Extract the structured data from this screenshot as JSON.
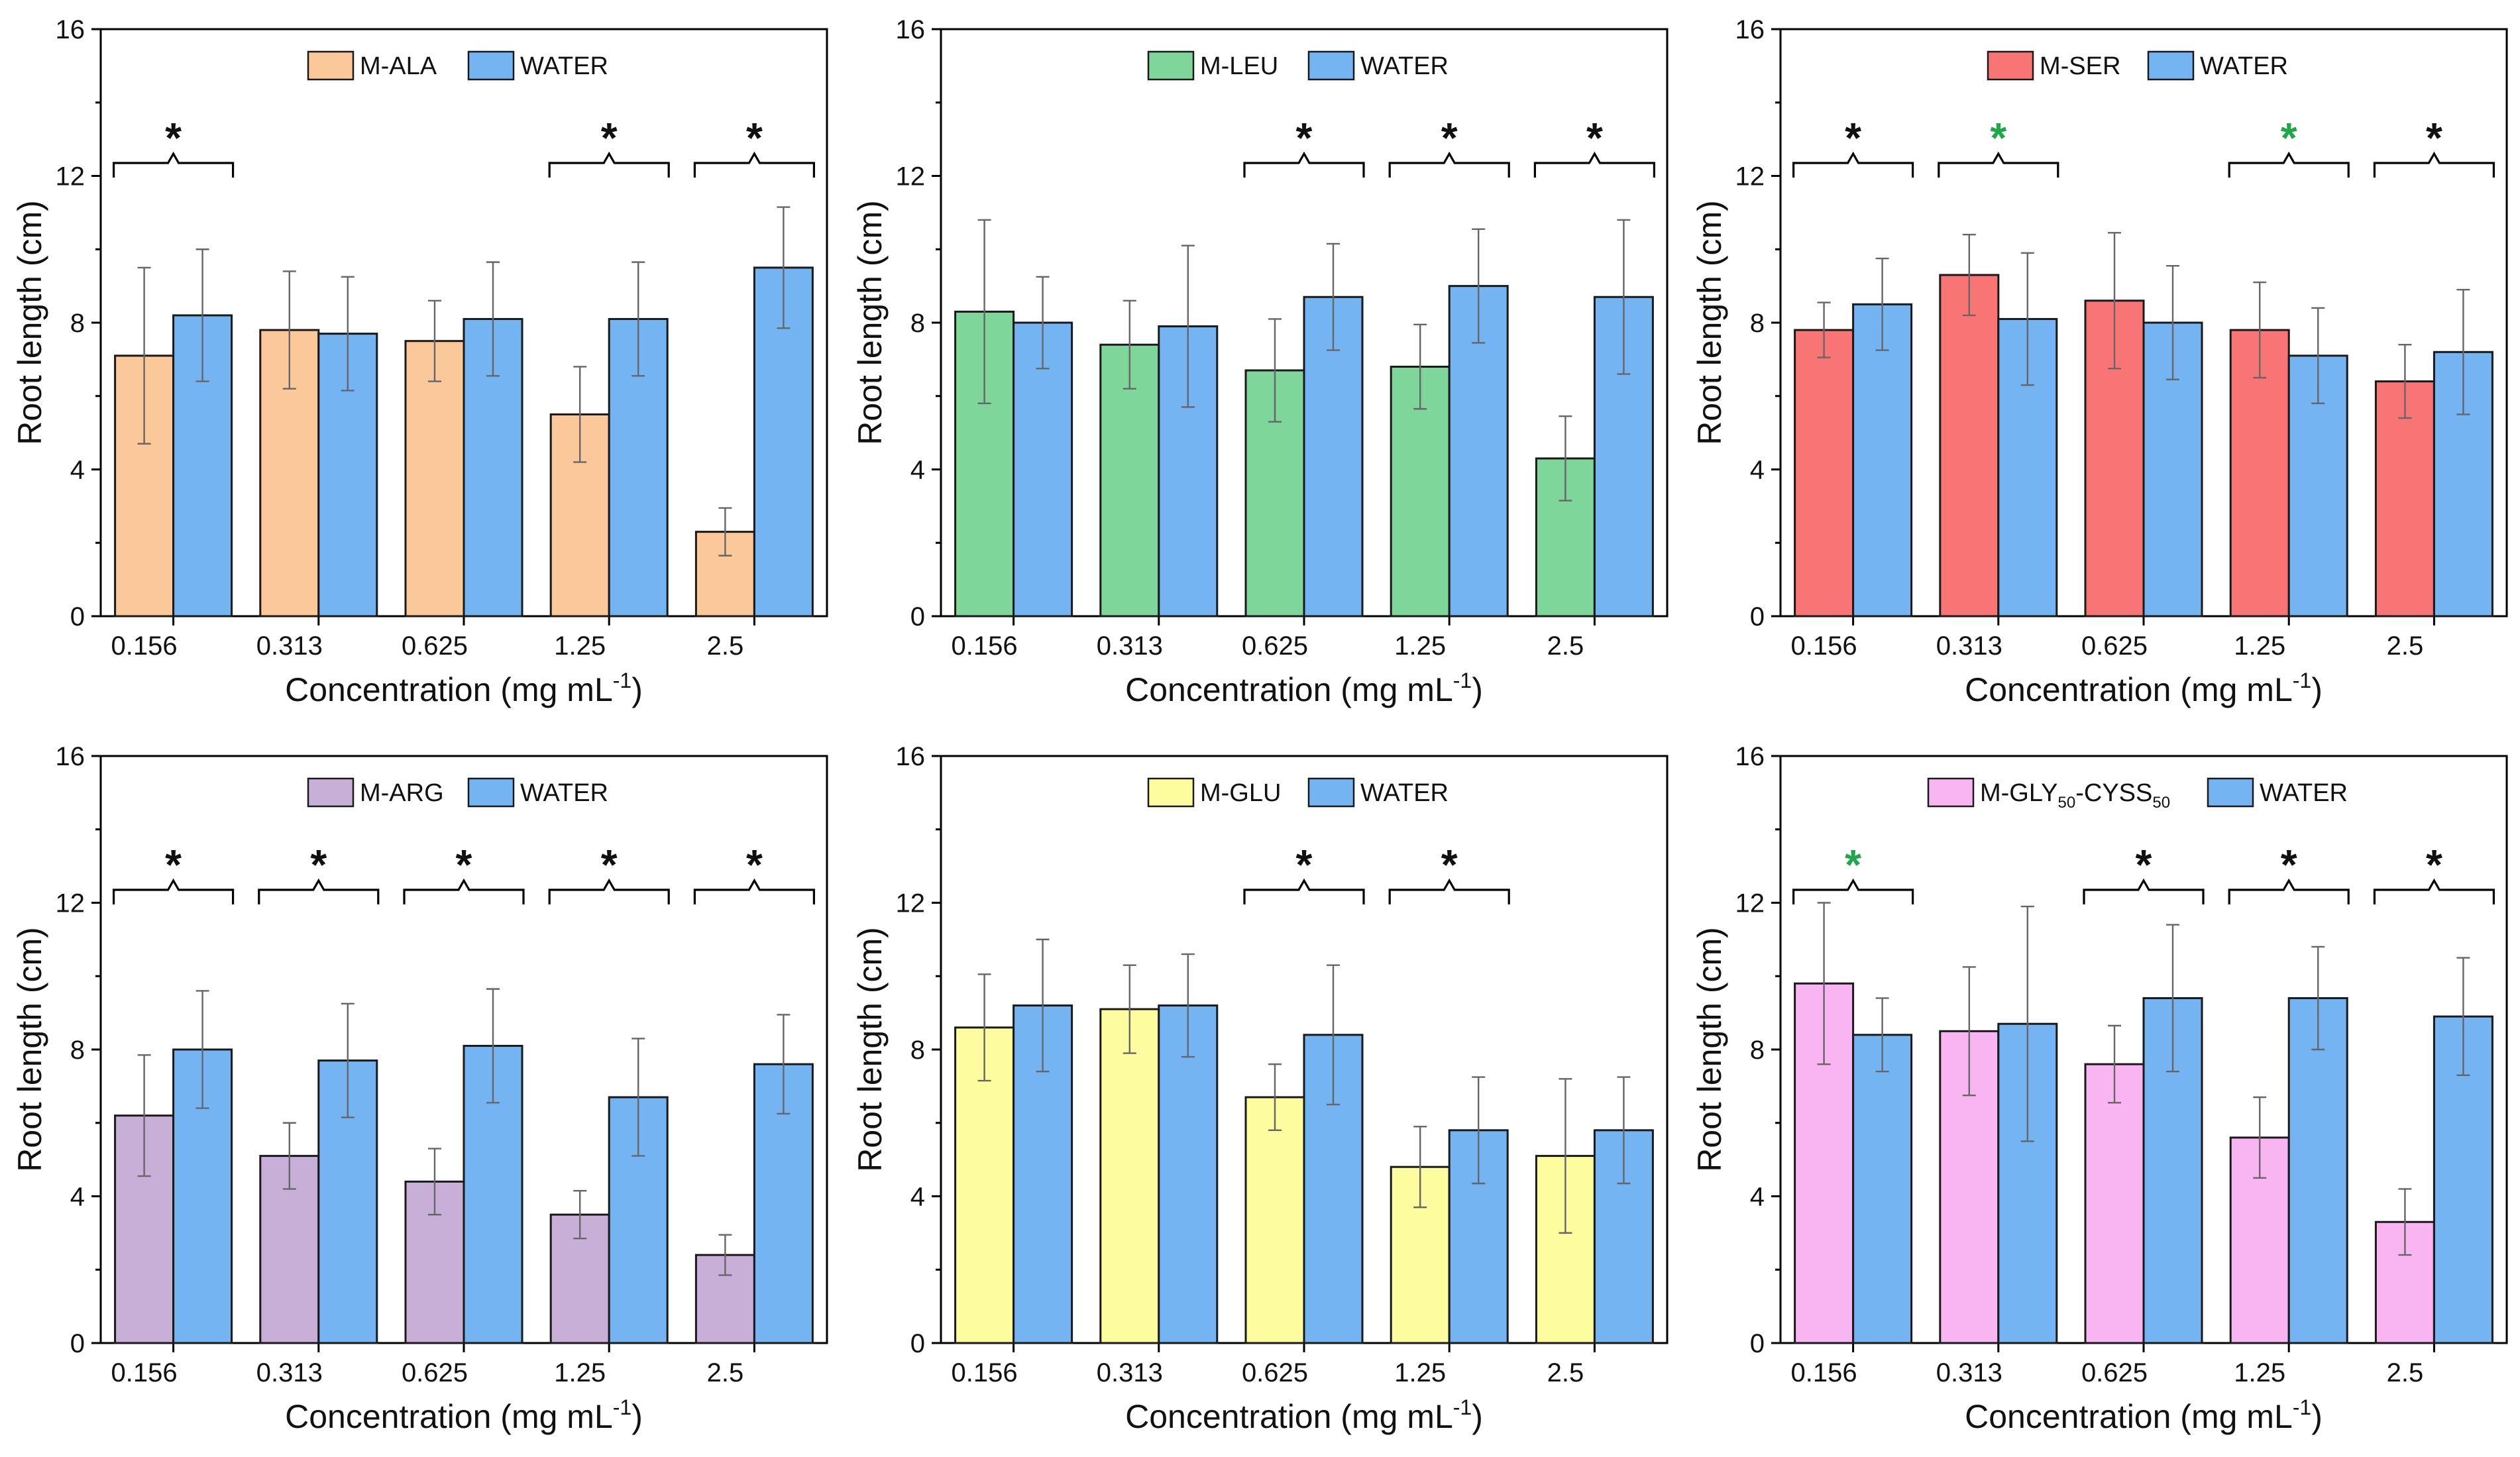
{
  "colors": {
    "water": "#74B4F2",
    "ala": "#FBC89A",
    "leu": "#7ED69A",
    "ser": "#F97474",
    "arg": "#C7AFD8",
    "glu": "#FDFDA0",
    "glycyss": "#F9B4F2",
    "star_black": "#111111",
    "star_green": "#1FA84A"
  },
  "chart_data": [
    {
      "type": "bar",
      "panel": "m-ala",
      "categories": [
        "0.156",
        "0.313",
        "0.625",
        "1.25",
        "2.5"
      ],
      "series": [
        {
          "name": "M-ALA",
          "values": [
            7.1,
            7.8,
            7.5,
            5.5,
            2.3
          ],
          "errors": [
            2.4,
            1.6,
            1.1,
            1.3,
            0.65
          ],
          "color_key": "ala"
        },
        {
          "name": "WATER",
          "values": [
            8.2,
            7.7,
            8.1,
            8.1,
            9.5
          ],
          "errors": [
            1.8,
            1.55,
            1.55,
            1.55,
            1.65
          ],
          "color_key": "water"
        }
      ],
      "significance": [
        {
          "index": 0,
          "mark": "*",
          "color_key": "star_black"
        },
        {
          "index": 3,
          "mark": "*",
          "color_key": "star_black"
        },
        {
          "index": 4,
          "mark": "*",
          "color_key": "star_black"
        }
      ],
      "xlabel": "Concentration (mg mL",
      "xlabel_sup": "-1",
      "xlabel_end": ")",
      "ylabel": "Root length (cm)",
      "ylim": [
        0,
        16
      ],
      "yticks": [
        "0",
        "4",
        "8",
        "12",
        "16"
      ],
      "legend": {
        "position": "top-center",
        "entries": [
          {
            "label": "M-ALA",
            "color_key": "ala"
          },
          {
            "label": "WATER",
            "color_key": "water"
          }
        ]
      }
    },
    {
      "type": "bar",
      "panel": "m-leu",
      "categories": [
        "0.156",
        "0.313",
        "0.625",
        "1.25",
        "2.5"
      ],
      "series": [
        {
          "name": "M-LEU",
          "values": [
            8.3,
            7.4,
            6.7,
            6.8,
            4.3
          ],
          "errors": [
            2.5,
            1.2,
            1.4,
            1.15,
            1.15
          ],
          "color_key": "leu"
        },
        {
          "name": "WATER",
          "values": [
            8.0,
            7.9,
            8.7,
            9.0,
            8.7
          ],
          "errors": [
            1.25,
            2.2,
            1.45,
            1.55,
            2.1
          ],
          "color_key": "water"
        }
      ],
      "significance": [
        {
          "index": 2,
          "mark": "*",
          "color_key": "star_black"
        },
        {
          "index": 3,
          "mark": "*",
          "color_key": "star_black"
        },
        {
          "index": 4,
          "mark": "*",
          "color_key": "star_black"
        }
      ],
      "xlabel": "Concentration (mg mL",
      "xlabel_sup": "-1",
      "xlabel_end": ")",
      "ylabel": "Root length (cm)",
      "ylim": [
        0,
        16
      ],
      "yticks": [
        "0",
        "4",
        "8",
        "12",
        "16"
      ],
      "legend": {
        "position": "top-center",
        "entries": [
          {
            "label": "M-LEU",
            "color_key": "leu"
          },
          {
            "label": "WATER",
            "color_key": "water"
          }
        ]
      }
    },
    {
      "type": "bar",
      "panel": "m-ser",
      "categories": [
        "0.156",
        "0.313",
        "0.625",
        "1.25",
        "2.5"
      ],
      "series": [
        {
          "name": "M-SER",
          "values": [
            7.8,
            9.3,
            8.6,
            7.8,
            6.4
          ],
          "errors": [
            0.75,
            1.1,
            1.85,
            1.3,
            1.0
          ],
          "color_key": "ser"
        },
        {
          "name": "WATER",
          "values": [
            8.5,
            8.1,
            8.0,
            7.1,
            7.2
          ],
          "errors": [
            1.25,
            1.8,
            1.55,
            1.3,
            1.7
          ],
          "color_key": "water"
        }
      ],
      "significance": [
        {
          "index": 0,
          "mark": "*",
          "color_key": "star_black"
        },
        {
          "index": 1,
          "mark": "*",
          "color_key": "star_green"
        },
        {
          "index": 3,
          "mark": "*",
          "color_key": "star_green"
        },
        {
          "index": 4,
          "mark": "*",
          "color_key": "star_black"
        }
      ],
      "xlabel": "Concentration (mg mL",
      "xlabel_sup": "-1",
      "xlabel_end": ")",
      "ylabel": "Root length (cm)",
      "ylim": [
        0,
        16
      ],
      "yticks": [
        "0",
        "4",
        "8",
        "12",
        "16"
      ],
      "legend": {
        "position": "top-center",
        "entries": [
          {
            "label": "M-SER",
            "color_key": "ser"
          },
          {
            "label": "WATER",
            "color_key": "water"
          }
        ]
      }
    },
    {
      "type": "bar",
      "panel": "m-arg",
      "categories": [
        "0.156",
        "0.313",
        "0.625",
        "1.25",
        "2.5"
      ],
      "series": [
        {
          "name": "M-ARG",
          "values": [
            6.2,
            5.1,
            4.4,
            3.5,
            2.4
          ],
          "errors": [
            1.65,
            0.9,
            0.9,
            0.65,
            0.55
          ],
          "color_key": "arg"
        },
        {
          "name": "WATER",
          "values": [
            8.0,
            7.7,
            8.1,
            6.7,
            7.6
          ],
          "errors": [
            1.6,
            1.55,
            1.55,
            1.6,
            1.35
          ],
          "color_key": "water"
        }
      ],
      "significance": [
        {
          "index": 0,
          "mark": "*",
          "color_key": "star_black"
        },
        {
          "index": 1,
          "mark": "*",
          "color_key": "star_black"
        },
        {
          "index": 2,
          "mark": "*",
          "color_key": "star_black"
        },
        {
          "index": 3,
          "mark": "*",
          "color_key": "star_black"
        },
        {
          "index": 4,
          "mark": "*",
          "color_key": "star_black"
        }
      ],
      "xlabel": "Concentration (mg mL",
      "xlabel_sup": "-1",
      "xlabel_end": ")",
      "ylabel": "Root length (cm)",
      "ylim": [
        0,
        16
      ],
      "yticks": [
        "0",
        "4",
        "8",
        "12",
        "16"
      ],
      "legend": {
        "position": "top-center",
        "entries": [
          {
            "label": "M-ARG",
            "color_key": "arg"
          },
          {
            "label": "WATER",
            "color_key": "water"
          }
        ]
      }
    },
    {
      "type": "bar",
      "panel": "m-glu",
      "categories": [
        "0.156",
        "0.313",
        "0.625",
        "1.25",
        "2.5"
      ],
      "series": [
        {
          "name": "M-GLU",
          "values": [
            8.6,
            9.1,
            6.7,
            4.8,
            5.1
          ],
          "errors": [
            1.45,
            1.2,
            0.9,
            1.1,
            2.1
          ],
          "color_key": "glu"
        },
        {
          "name": "WATER",
          "values": [
            9.2,
            9.2,
            8.4,
            5.8,
            5.8
          ],
          "errors": [
            1.8,
            1.4,
            1.9,
            1.45,
            1.45
          ],
          "color_key": "water"
        }
      ],
      "significance": [
        {
          "index": 2,
          "mark": "*",
          "color_key": "star_black"
        },
        {
          "index": 3,
          "mark": "*",
          "color_key": "star_black"
        }
      ],
      "xlabel": "Concentration (mg mL",
      "xlabel_sup": "-1",
      "xlabel_end": ")",
      "ylabel": "Root length (cm)",
      "ylim": [
        0,
        16
      ],
      "yticks": [
        "0",
        "4",
        "8",
        "12",
        "16"
      ],
      "legend": {
        "position": "top-center",
        "entries": [
          {
            "label": "M-GLU",
            "color_key": "glu"
          },
          {
            "label": "WATER",
            "color_key": "water"
          }
        ]
      }
    },
    {
      "type": "bar",
      "panel": "m-gly-cyss",
      "categories": [
        "0.156",
        "0.313",
        "0.625",
        "1.25",
        "2.5"
      ],
      "series": [
        {
          "name": "M-GLY50-CYSS50",
          "values": [
            9.8,
            8.5,
            7.6,
            5.6,
            3.3
          ],
          "errors": [
            2.2,
            1.75,
            1.05,
            1.1,
            0.9
          ],
          "color_key": "glycyss"
        },
        {
          "name": "WATER",
          "values": [
            8.4,
            8.7,
            9.4,
            9.4,
            8.9
          ],
          "errors": [
            1.0,
            3.2,
            2.0,
            1.4,
            1.6
          ],
          "color_key": "water"
        }
      ],
      "significance": [
        {
          "index": 0,
          "mark": "*",
          "color_key": "star_green"
        },
        {
          "index": 2,
          "mark": "*",
          "color_key": "star_black"
        },
        {
          "index": 3,
          "mark": "*",
          "color_key": "star_black"
        },
        {
          "index": 4,
          "mark": "*",
          "color_key": "star_black"
        }
      ],
      "xlabel": "Concentration (mg mL",
      "xlabel_sup": "-1",
      "xlabel_end": ")",
      "ylabel": "Root length (cm)",
      "ylim": [
        0,
        16
      ],
      "yticks": [
        "0",
        "4",
        "8",
        "12",
        "16"
      ],
      "legend": {
        "position": "top-center",
        "entries": [
          {
            "label": "M-GLY",
            "sub1": "50",
            "mid": "-CYSS",
            "sub2": "50",
            "color_key": "glycyss"
          },
          {
            "label": "WATER",
            "color_key": "water"
          }
        ]
      }
    }
  ]
}
